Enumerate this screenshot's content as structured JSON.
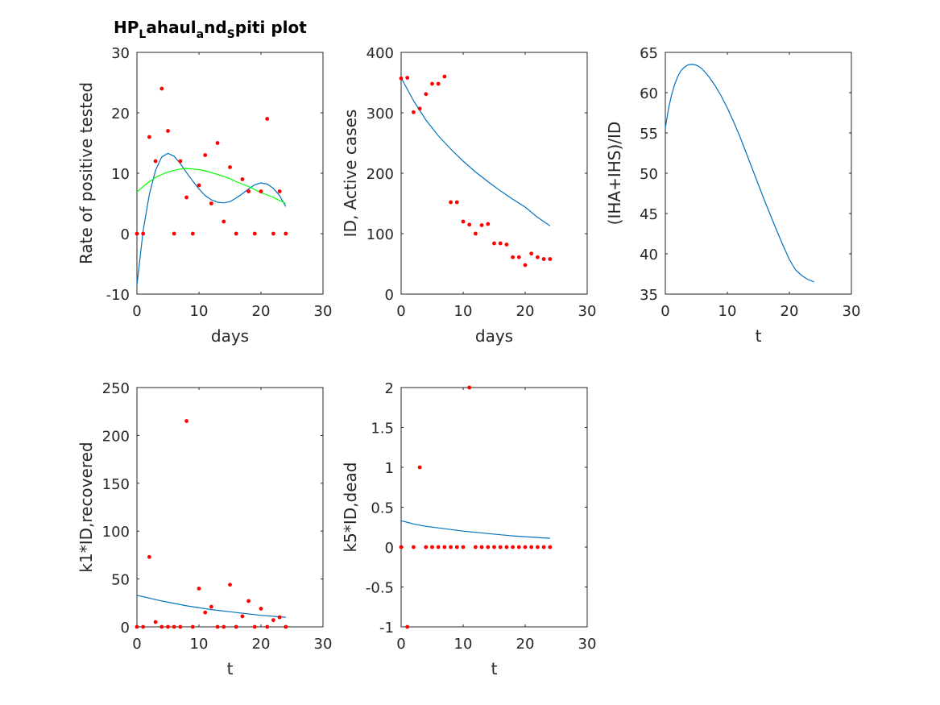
{
  "figure": {
    "title_main": "HP",
    "title_sub1": "L",
    "title_mid1": "ahaul",
    "title_sub2": "a",
    "title_mid2": "nd",
    "title_sub3": "S",
    "title_end": "piti plot"
  },
  "colors": {
    "axis": "#262626",
    "fit": "#0072bd",
    "fit2": "#00ff00",
    "points": "#ff0000"
  },
  "chart_data": [
    {
      "type": "scatter",
      "xlabel": "days",
      "ylabel": "Rate of positive tested",
      "xlim": [
        0,
        30
      ],
      "ylim": [
        -10,
        30
      ],
      "xticks": [
        0,
        10,
        20,
        30
      ],
      "yticks": [
        -10,
        0,
        10,
        20,
        30
      ],
      "points": {
        "x": [
          0,
          1,
          2,
          3,
          4,
          5,
          6,
          7,
          8,
          9,
          10,
          11,
          12,
          13,
          14,
          15,
          16,
          17,
          18,
          19,
          20,
          21,
          22,
          23,
          24
        ],
        "y": [
          0,
          0,
          16,
          12,
          24,
          17,
          0,
          12,
          6,
          0,
          8,
          13,
          5,
          15,
          2,
          11,
          0,
          9,
          7,
          0,
          7,
          19,
          0,
          7,
          0
        ]
      },
      "lines": [
        {
          "color": "fit",
          "x": [
            0,
            1,
            2,
            3,
            4,
            5,
            6,
            7,
            8,
            9,
            10,
            11,
            12,
            13,
            14,
            15,
            16,
            17,
            18,
            19,
            20,
            21,
            22,
            23,
            24
          ],
          "y": [
            -8.5,
            0.5,
            6.5,
            10.5,
            12.7,
            13.3,
            12.8,
            11.6,
            10.1,
            8.7,
            7.4,
            6.3,
            5.6,
            5.2,
            5.1,
            5.3,
            5.9,
            6.6,
            7.4,
            8.1,
            8.4,
            8.2,
            7.5,
            6.3,
            4.5
          ]
        },
        {
          "color": "fit2",
          "x": [
            0,
            1,
            2,
            3,
            4,
            5,
            6,
            7,
            8,
            9,
            10,
            11,
            12,
            13,
            14,
            15,
            16,
            17,
            18,
            19,
            20,
            21,
            22,
            23,
            24
          ],
          "y": [
            6.9,
            7.8,
            8.6,
            9.3,
            9.8,
            10.2,
            10.5,
            10.7,
            10.8,
            10.7,
            10.6,
            10.4,
            10.1,
            9.8,
            9.5,
            9.1,
            8.6,
            8.2,
            7.8,
            7.3,
            6.8,
            6.4,
            6.0,
            5.5,
            5.0
          ]
        }
      ]
    },
    {
      "type": "scatter",
      "xlabel": "days",
      "ylabel": "ID, Active cases",
      "xlim": [
        0,
        30
      ],
      "ylim": [
        0,
        400
      ],
      "xticks": [
        0,
        10,
        20,
        30
      ],
      "yticks": [
        0,
        100,
        200,
        300,
        400
      ],
      "points": {
        "x": [
          0,
          1,
          2,
          3,
          4,
          5,
          6,
          7,
          8,
          9,
          10,
          11,
          12,
          13,
          14,
          15,
          16,
          17,
          18,
          19,
          20,
          21,
          22,
          23,
          24
        ],
        "y": [
          357,
          358,
          301,
          307,
          331,
          348,
          348,
          360,
          152,
          152,
          120,
          115,
          100,
          114,
          116,
          84,
          84,
          82,
          61,
          61,
          48,
          67,
          61,
          58,
          58
        ]
      },
      "lines": [
        {
          "color": "fit",
          "x": [
            0,
            2,
            4,
            6,
            8,
            10,
            12,
            14,
            16,
            18,
            20,
            22,
            24
          ],
          "y": [
            358,
            320,
            288,
            262,
            240,
            220,
            202,
            186,
            171,
            157,
            144,
            127,
            113
          ]
        }
      ]
    },
    {
      "type": "line",
      "xlabel": "t",
      "ylabel": "(IHA+IHS)/ID",
      "xlim": [
        0,
        30
      ],
      "ylim": [
        35,
        65
      ],
      "xticks": [
        0,
        10,
        20,
        30
      ],
      "yticks": [
        35,
        40,
        45,
        50,
        55,
        60,
        65
      ],
      "points": {
        "x": [],
        "y": []
      },
      "lines": [
        {
          "color": "fit",
          "x": [
            0,
            0.5,
            1,
            1.5,
            2,
            2.5,
            3,
            3.5,
            4,
            4.5,
            5,
            5.5,
            6,
            7,
            8,
            9,
            10,
            11,
            12,
            13,
            14,
            15,
            16,
            17,
            18,
            19,
            20,
            21,
            22,
            23,
            24
          ],
          "y": [
            55.6,
            58.0,
            59.7,
            61.0,
            62.0,
            62.7,
            63.1,
            63.4,
            63.5,
            63.5,
            63.4,
            63.2,
            62.9,
            62.0,
            60.9,
            59.6,
            58.1,
            56.4,
            54.6,
            52.6,
            50.6,
            48.6,
            46.6,
            44.7,
            42.8,
            41.0,
            39.3,
            38.0,
            37.3,
            36.8,
            36.5
          ]
        }
      ]
    },
    {
      "type": "scatter",
      "xlabel": "t",
      "ylabel": "k1*ID,recovered",
      "xlim": [
        0,
        30
      ],
      "ylim": [
        0,
        250
      ],
      "xticks": [
        0,
        10,
        20,
        30
      ],
      "yticks": [
        0,
        50,
        100,
        150,
        200,
        250
      ],
      "points": {
        "x": [
          0,
          1,
          2,
          3,
          4,
          5,
          6,
          7,
          8,
          9,
          10,
          11,
          12,
          13,
          14,
          15,
          16,
          17,
          18,
          19,
          20,
          21,
          22,
          23,
          24
        ],
        "y": [
          0,
          0,
          73,
          5,
          0,
          0,
          0,
          0,
          215,
          0,
          40,
          15,
          21,
          0,
          0,
          44,
          0,
          11,
          27,
          0,
          19,
          0,
          7,
          10,
          0
        ]
      },
      "lines": [
        {
          "color": "fit",
          "x": [
            0,
            4,
            8,
            12,
            16,
            20,
            24
          ],
          "y": [
            33,
            27,
            22,
            18,
            15,
            12,
            10
          ]
        }
      ]
    },
    {
      "type": "scatter",
      "xlabel": "t",
      "ylabel": "k5*ID,dead",
      "xlim": [
        0,
        30
      ],
      "ylim": [
        -1,
        2
      ],
      "xticks": [
        0,
        10,
        20,
        30
      ],
      "yticks": [
        -1,
        -0.5,
        0,
        0.5,
        1,
        1.5,
        2
      ],
      "points": {
        "x": [
          0,
          1,
          2,
          3,
          4,
          5,
          6,
          7,
          8,
          9,
          10,
          11,
          12,
          13,
          14,
          15,
          16,
          17,
          18,
          19,
          20,
          21,
          22,
          23,
          24
        ],
        "y": [
          0,
          -1,
          0,
          1,
          0,
          0,
          0,
          0,
          0,
          0,
          0,
          2,
          0,
          0,
          0,
          0,
          0,
          0,
          0,
          0,
          0,
          0,
          0,
          0,
          0
        ]
      },
      "lines": [
        {
          "color": "fit",
          "x": [
            0,
            2,
            4,
            6,
            8,
            10,
            12,
            14,
            16,
            18,
            20,
            22,
            24
          ],
          "y": [
            0.33,
            0.29,
            0.26,
            0.24,
            0.22,
            0.2,
            0.185,
            0.17,
            0.155,
            0.14,
            0.13,
            0.12,
            0.11
          ]
        }
      ]
    }
  ]
}
